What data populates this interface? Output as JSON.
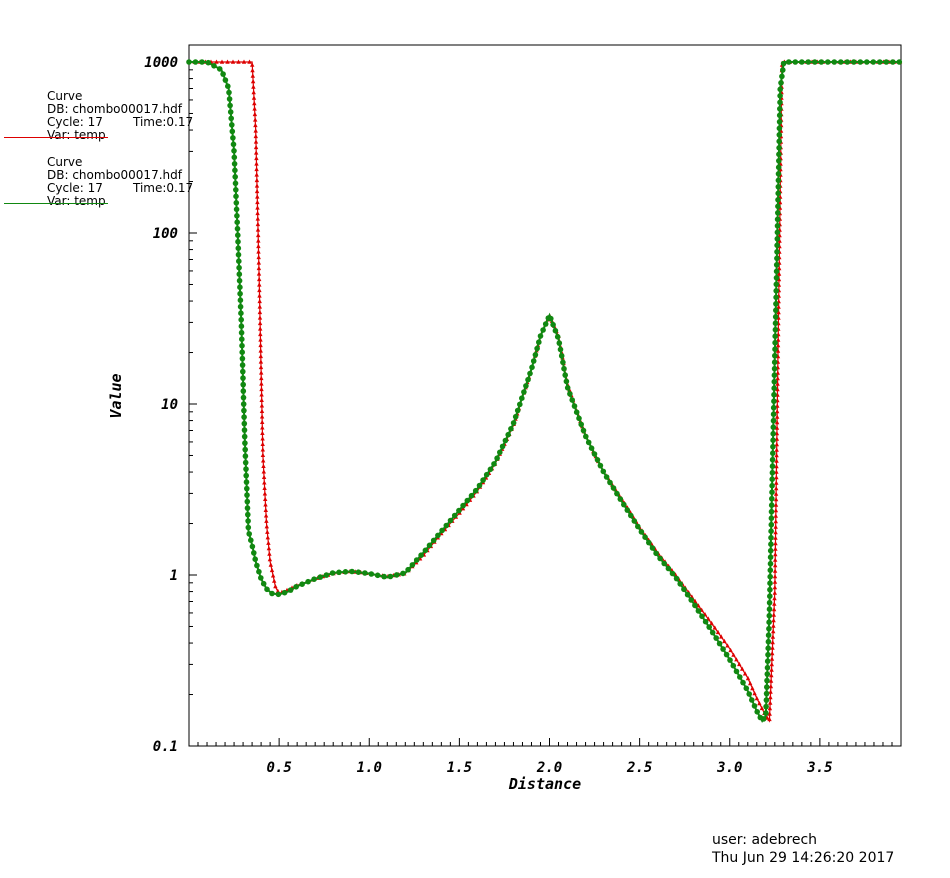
{
  "chart_data": {
    "type": "line",
    "xlabel": "Distance",
    "ylabel": "Value",
    "xlim": [
      0.0,
      3.95
    ],
    "ylim": [
      0.1,
      1000
    ],
    "yscale": "log",
    "x_ticks": [
      "0.5",
      "1.0",
      "1.5",
      "2.0",
      "2.5",
      "3.0",
      "3.5"
    ],
    "y_ticks": [
      "0.1",
      "1",
      "10",
      "100",
      "1000"
    ],
    "grid": false,
    "legend_placement": "top-left",
    "series": [
      {
        "color": "#dd0000",
        "marker": "triangle",
        "x": [
          0.0,
          0.3,
          0.35,
          0.37,
          0.39,
          0.41,
          0.43,
          0.45,
          0.48,
          0.5,
          0.55,
          0.6,
          0.7,
          0.8,
          0.9,
          1.0,
          1.1,
          1.2,
          1.3,
          1.4,
          1.5,
          1.6,
          1.7,
          1.8,
          1.9,
          1.95,
          2.0,
          2.05,
          2.1,
          2.2,
          2.3,
          2.4,
          2.5,
          2.6,
          2.7,
          2.8,
          2.9,
          3.0,
          3.1,
          3.15,
          3.2,
          3.22,
          3.25,
          3.27,
          3.29,
          3.3,
          3.35,
          3.5,
          3.7,
          3.95
        ],
        "y": [
          1000,
          1000,
          1000,
          400,
          50,
          5,
          2.0,
          1.2,
          0.85,
          0.78,
          0.82,
          0.87,
          0.95,
          1.02,
          1.05,
          1.02,
          0.98,
          1.02,
          1.3,
          1.75,
          2.3,
          3.1,
          4.5,
          7.5,
          16,
          25,
          33,
          25,
          13,
          6.5,
          4.0,
          2.8,
          1.9,
          1.35,
          1.0,
          0.72,
          0.52,
          0.37,
          0.25,
          0.19,
          0.15,
          0.14,
          0.8,
          30,
          1000,
          1000,
          1000,
          1000,
          1000,
          1000
        ]
      },
      {
        "color": "#118811",
        "marker": "circle",
        "x": [
          0.0,
          0.1,
          0.18,
          0.22,
          0.25,
          0.27,
          0.29,
          0.31,
          0.33,
          0.35,
          0.37,
          0.4,
          0.43,
          0.46,
          0.5,
          0.55,
          0.6,
          0.7,
          0.8,
          0.9,
          1.0,
          1.1,
          1.2,
          1.3,
          1.4,
          1.5,
          1.6,
          1.7,
          1.8,
          1.9,
          1.95,
          2.0,
          2.05,
          2.1,
          2.2,
          2.3,
          2.4,
          2.5,
          2.6,
          2.7,
          2.8,
          2.9,
          3.0,
          3.1,
          3.15,
          3.18,
          3.2,
          3.22,
          3.24,
          3.26,
          3.28,
          3.3,
          3.35,
          3.5,
          3.7,
          3.95
        ],
        "y": [
          1000,
          1000,
          900,
          700,
          300,
          100,
          30,
          6,
          1.8,
          1.5,
          1.2,
          0.95,
          0.83,
          0.78,
          0.77,
          0.8,
          0.86,
          0.95,
          1.03,
          1.05,
          1.02,
          0.97,
          1.03,
          1.35,
          1.8,
          2.4,
          3.2,
          4.6,
          7.7,
          16,
          25,
          33,
          24,
          12.5,
          6.5,
          4.0,
          2.7,
          1.85,
          1.3,
          0.97,
          0.68,
          0.47,
          0.32,
          0.21,
          0.16,
          0.14,
          0.15,
          0.6,
          6,
          60,
          700,
          1000,
          1000,
          1000,
          1000,
          1000
        ]
      }
    ]
  },
  "legend": [
    {
      "title": "Curve",
      "db": "DB: chombo00017.hdf",
      "cycle": "Cycle: 17",
      "time": "Time:0.17",
      "var": "Var: temp",
      "color": "#dd0000"
    },
    {
      "title": "Curve",
      "db": "DB: chombo00017.hdf",
      "cycle": "Cycle: 17",
      "time": "Time:0.17",
      "var": "Var: temp",
      "color": "#118811"
    }
  ],
  "footer": {
    "user": "user: adebrech",
    "timestamp": "Thu Jun 29 14:26:20 2017"
  }
}
